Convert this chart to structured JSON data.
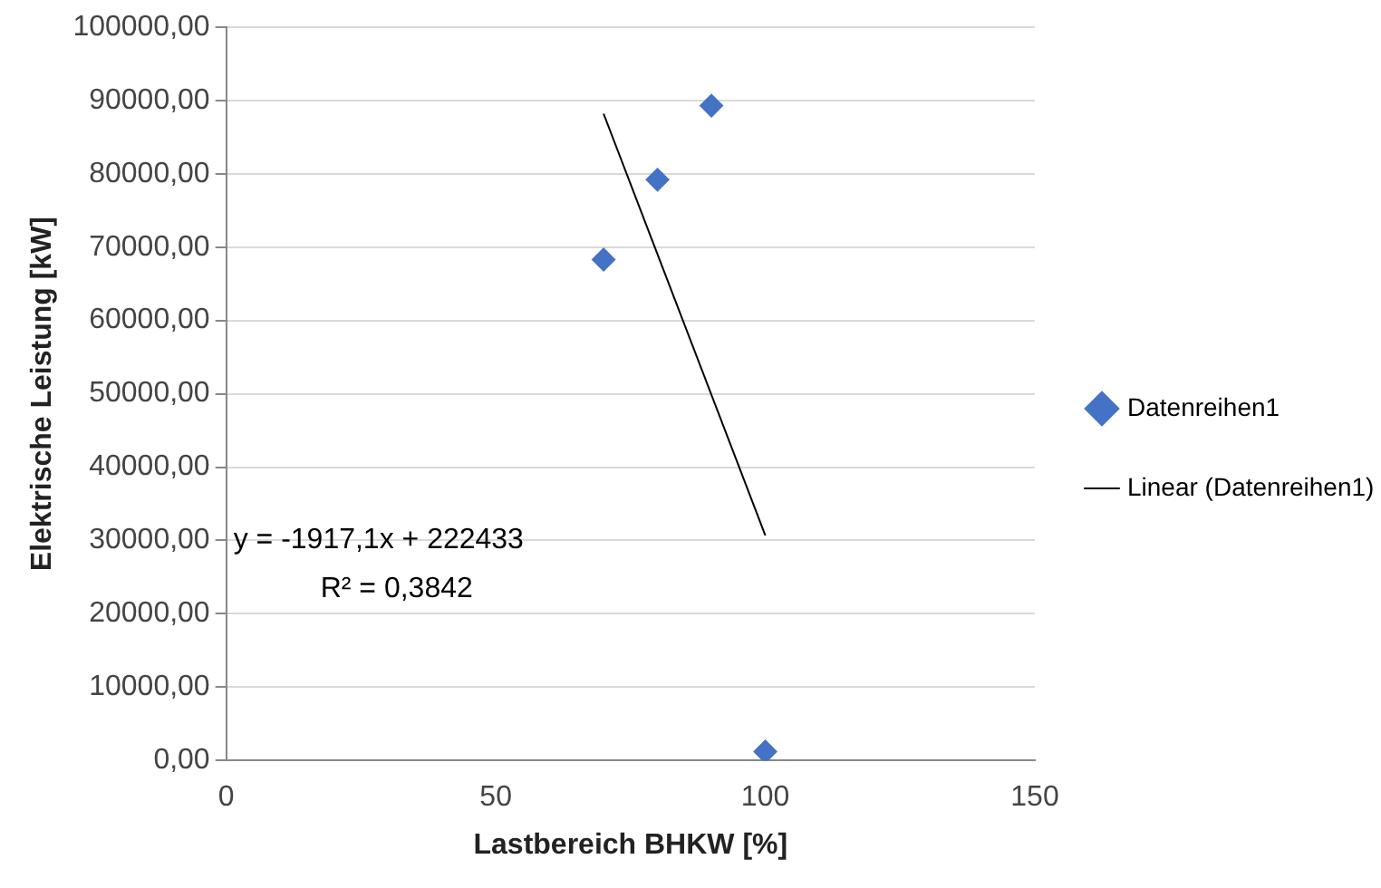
{
  "chart_data": {
    "type": "scatter",
    "xlabel": "Lastbereich BHKW [%]",
    "ylabel": "Elektrische Leistung [kW]",
    "xlim": [
      0,
      150
    ],
    "xticks": [
      0,
      50,
      100,
      150
    ],
    "ylim": [
      0,
      100000
    ],
    "yticks": [
      {
        "value": 0,
        "label": "0,00"
      },
      {
        "value": 10000,
        "label": "10000,00"
      },
      {
        "value": 20000,
        "label": "20000,00"
      },
      {
        "value": 30000,
        "label": "30000,00"
      },
      {
        "value": 40000,
        "label": "40000,00"
      },
      {
        "value": 50000,
        "label": "50000,00"
      },
      {
        "value": 60000,
        "label": "60000,00"
      },
      {
        "value": 70000,
        "label": "70000,00"
      },
      {
        "value": 80000,
        "label": "80000,00"
      },
      {
        "value": 90000,
        "label": "90000,00"
      },
      {
        "value": 100000,
        "label": "100000,00"
      }
    ],
    "grid": "y",
    "legend": "right",
    "marker": "diamond",
    "series": [
      {
        "name": "Datenreihen1",
        "color": "#4472c4",
        "x": [
          70,
          80,
          90,
          100
        ],
        "values": [
          68300,
          79200,
          89300,
          1200
        ]
      },
      {
        "name": "Linear (Datenreihen1)",
        "type": "line",
        "color": "#000000",
        "x": [
          70,
          100
        ],
        "values": [
          88200,
          30700
        ],
        "marker": "none",
        "line_style": "solid"
      }
    ],
    "annotations": [
      "y = -1917,1x + 222433",
      "R² = 0,3842"
    ]
  }
}
